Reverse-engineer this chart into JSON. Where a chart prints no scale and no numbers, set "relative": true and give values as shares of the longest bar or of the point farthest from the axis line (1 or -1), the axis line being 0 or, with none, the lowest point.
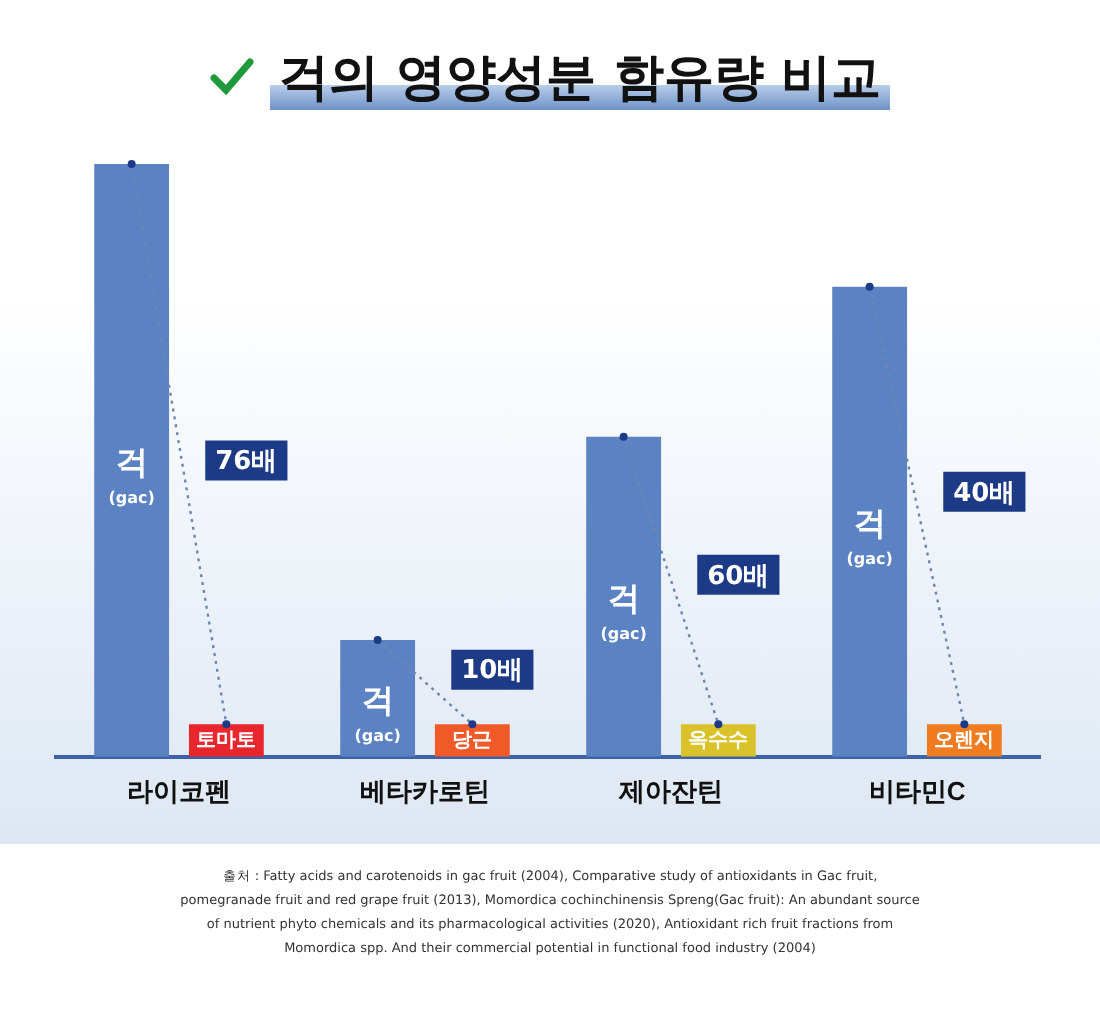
{
  "chart_data": {
    "type": "bar",
    "title": "걱의 영양성분 함유량 비교",
    "relative": true,
    "categories": [
      "라이코펜",
      "베타카로틴",
      "제아잔틴",
      "비타민C"
    ],
    "series": [
      {
        "name": "걱 (gac)",
        "color": "#5b82c2",
        "values": [
          1,
          0.197,
          0.54,
          0.793
        ]
      },
      {
        "colors": [
          "#e8262d",
          "#f05a28",
          "#d9c22a",
          "#f07c22"
        ],
        "values": [
          0.055,
          0.055,
          0.055,
          0.055
        ]
      }
    ],
    "annotations": [
      {
        "text": "토마토",
        "x": "라이코펜",
        "y": 0.027
      },
      {
        "text": "당근",
        "x": "베타카로틴",
        "y": 0.027
      },
      {
        "text": "옥수수",
        "x": "제아잔틴",
        "y": 0.027
      },
      {
        "text": "오렌지",
        "x": "비타민C",
        "y": 0.027
      },
      {
        "text": "76배",
        "x": "라이코펜",
        "y": 0.5
      },
      {
        "text": "10배",
        "x": "베타카로틴",
        "y": 0.147
      },
      {
        "text": "60배",
        "x": "제아잔틴",
        "y": 0.307
      },
      {
        "text": "40배",
        "x": "비타민C",
        "y": 0.447
      },
      "출처 : Fatty acids and carotenoids in gac fruit (2004), Comparative study of antioxidants in Gac fruit, pomegranade fruit and red grape fruit (2013), Momordica cochinchinensis Spreng(Gac fruit): An abundant source of nutrient phyto chemicals and its pharmacological activities (2020), Antioxidant rich fruit fractions from Momordica spp. And their commercial potential in functional food industry (2004)"
    ],
    "legend": false,
    "grid": false
  }
}
